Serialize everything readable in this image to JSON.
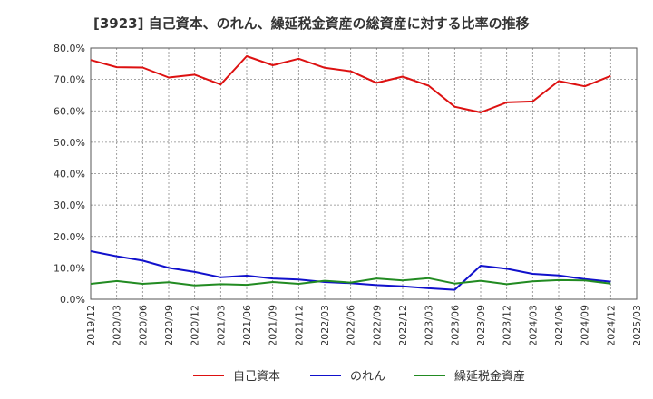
{
  "chart_data": {
    "type": "line",
    "title": "[3923]  自己資本、のれん、繰延税金資産の総資産に対する比率の推移",
    "xlabel": "",
    "ylabel": "",
    "ylim": [
      0,
      80
    ],
    "y_ticks": [
      "0.0%",
      "10.0%",
      "20.0%",
      "30.0%",
      "40.0%",
      "50.0%",
      "60.0%",
      "70.0%",
      "80.0%"
    ],
    "x_ticks": [
      "2019/12",
      "2020/03",
      "2020/06",
      "2020/09",
      "2020/12",
      "2021/03",
      "2021/06",
      "2021/09",
      "2021/12",
      "2022/03",
      "2022/06",
      "2022/09",
      "2022/12",
      "2023/03",
      "2023/06",
      "2023/09",
      "2023/12",
      "2024/03",
      "2024/06",
      "2024/09",
      "2024/12",
      "2025/03"
    ],
    "x": [
      "2019/12",
      "2020/03",
      "2020/06",
      "2020/09",
      "2020/12",
      "2021/03",
      "2021/06",
      "2021/09",
      "2021/12",
      "2022/03",
      "2022/06",
      "2022/09",
      "2022/12",
      "2023/03",
      "2023/06",
      "2023/09",
      "2023/12",
      "2024/03",
      "2024/06",
      "2024/09",
      "2024/12"
    ],
    "grid": true,
    "legend_position": "bottom",
    "series": [
      {
        "name": "自己資本",
        "color": "#dd1111",
        "values": [
          76.2,
          73.9,
          73.8,
          70.6,
          71.5,
          68.4,
          77.4,
          74.5,
          76.6,
          73.7,
          72.6,
          68.9,
          70.9,
          68.0,
          61.3,
          59.5,
          62.7,
          63.0,
          69.5,
          67.8,
          71.1
        ]
      },
      {
        "name": "のれん",
        "color": "#1111cc",
        "values": [
          15.3,
          13.7,
          12.3,
          10.0,
          8.7,
          7.0,
          7.5,
          6.6,
          6.3,
          5.5,
          5.1,
          4.5,
          4.1,
          3.5,
          3.0,
          10.7,
          9.7,
          8.1,
          7.6,
          6.4,
          5.6
        ]
      },
      {
        "name": "繰延税金資産",
        "color": "#228b22",
        "values": [
          4.9,
          5.8,
          4.9,
          5.4,
          4.4,
          4.8,
          4.6,
          5.5,
          4.9,
          5.9,
          5.3,
          6.6,
          6.0,
          6.7,
          5.0,
          5.9,
          4.8,
          5.7,
          6.1,
          6.0,
          5.0
        ]
      }
    ]
  }
}
